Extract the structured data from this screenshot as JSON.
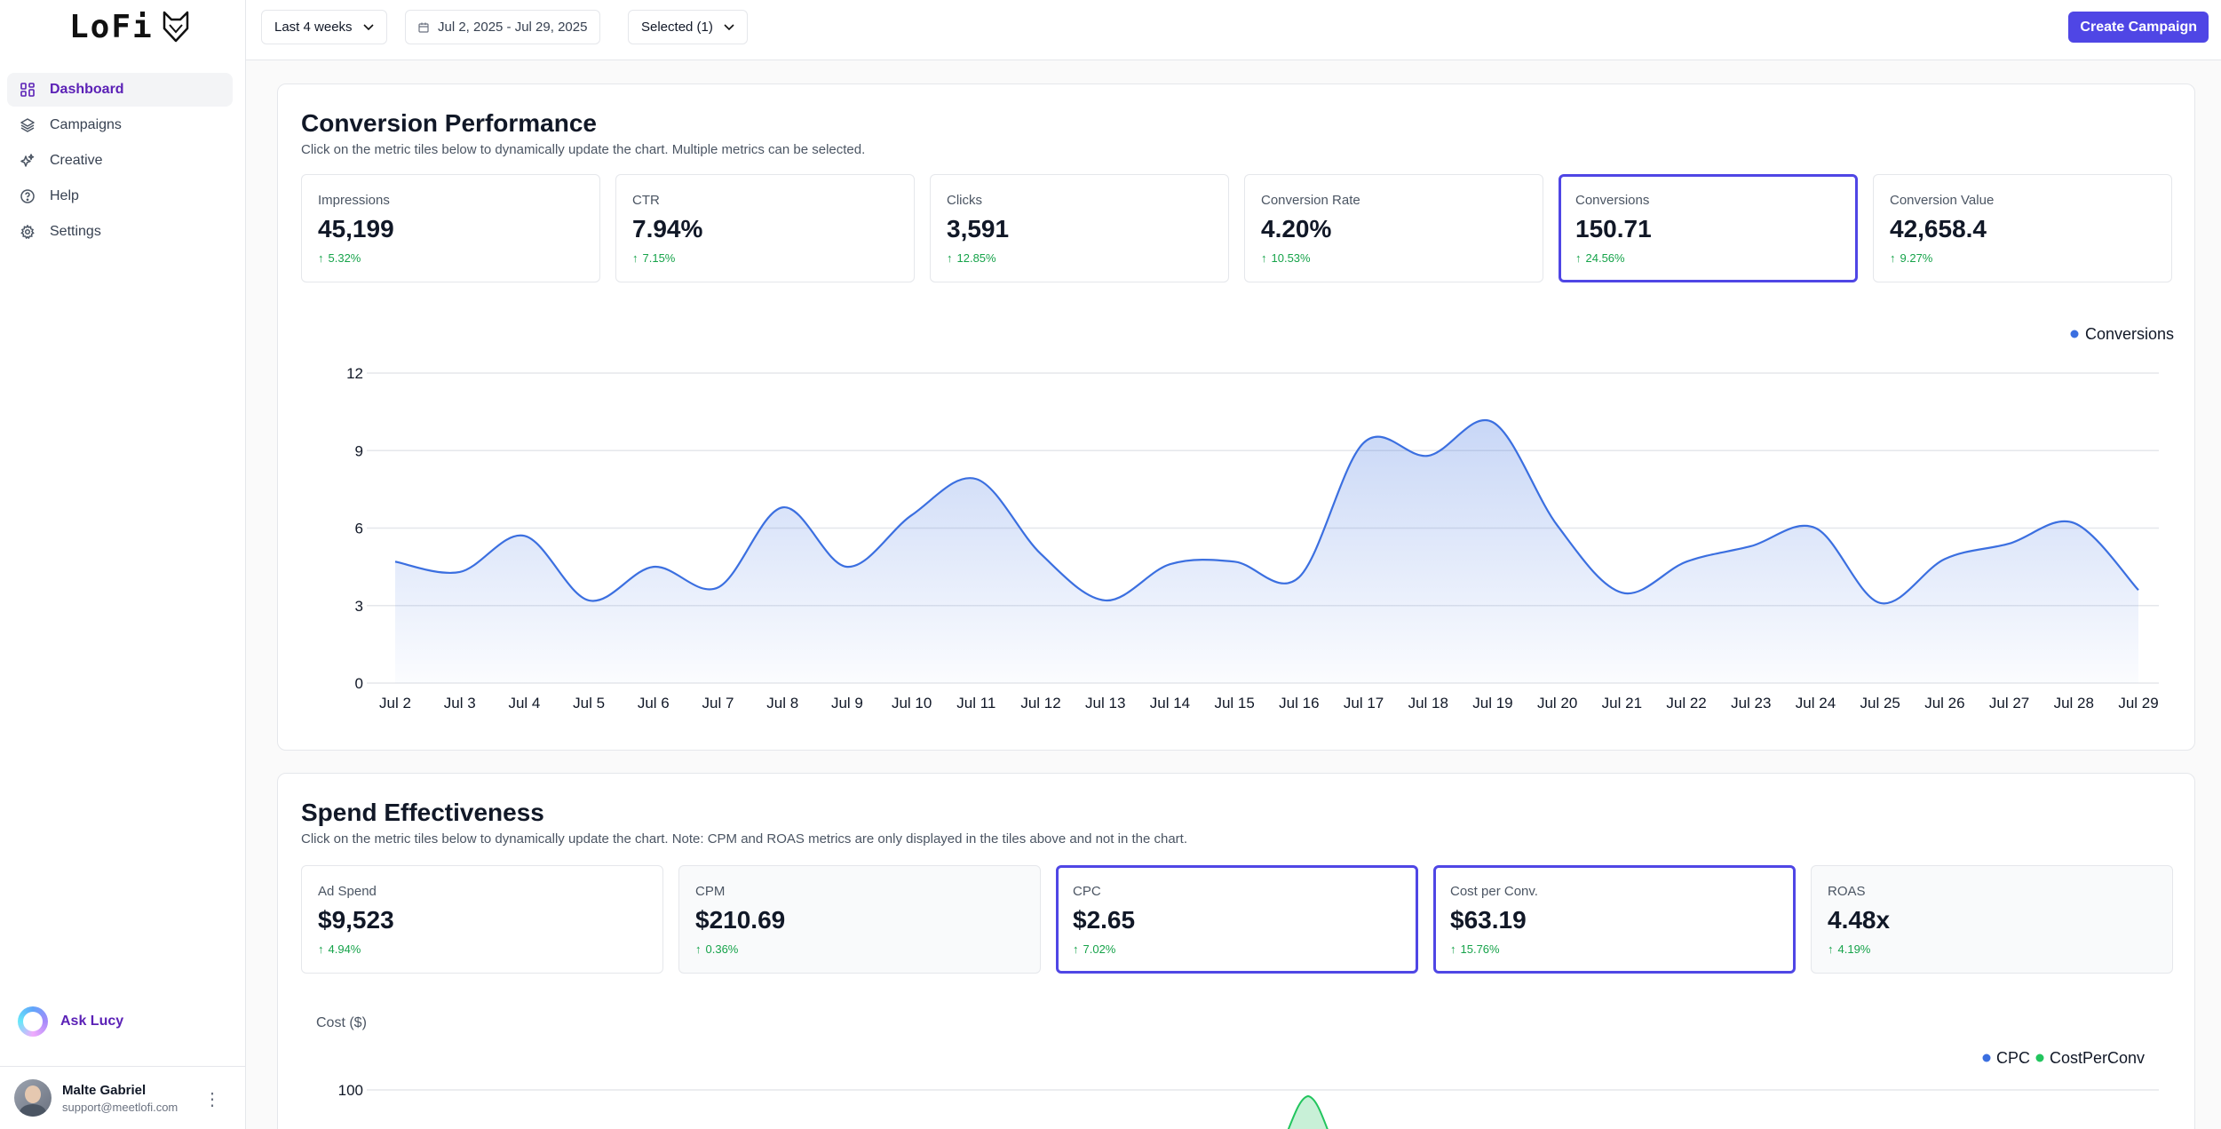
{
  "app": {
    "logo_text": "LoFi"
  },
  "sidebar": {
    "items": [
      {
        "label": "Dashboard",
        "icon": "grid-icon",
        "active": true
      },
      {
        "label": "Campaigns",
        "icon": "layers-icon",
        "active": false
      },
      {
        "label": "Creative",
        "icon": "sparkles-icon",
        "active": false
      },
      {
        "label": "Help",
        "icon": "help-circle-icon",
        "active": false
      },
      {
        "label": "Settings",
        "icon": "gear-icon",
        "active": false
      }
    ],
    "ask_lucy": "Ask Lucy",
    "user": {
      "name": "Malte Gabriel",
      "email": "support@meetlofi.com"
    }
  },
  "topbar": {
    "range_label": "Last 4 weeks",
    "date_range": "Jul 2, 2025 - Jul 29, 2025",
    "selected_label": "Selected (1)",
    "create_label": "Create Campaign"
  },
  "conversion": {
    "title": "Conversion Performance",
    "subtitle": "Click on the metric tiles below to dynamically update the chart. Multiple metrics can be selected.",
    "tiles": [
      {
        "label": "Impressions",
        "value": "45,199",
        "change": "5.32%",
        "selected": false
      },
      {
        "label": "CTR",
        "value": "7.94%",
        "change": "7.15%",
        "selected": false
      },
      {
        "label": "Clicks",
        "value": "3,591",
        "change": "12.85%",
        "selected": false
      },
      {
        "label": "Conversion Rate",
        "value": "4.20%",
        "change": "10.53%",
        "selected": false
      },
      {
        "label": "Conversions",
        "value": "150.71",
        "change": "24.56%",
        "selected": true
      },
      {
        "label": "Conversion Value",
        "value": "42,658.4",
        "change": "9.27%",
        "selected": false
      }
    ]
  },
  "spend": {
    "title": "Spend Effectiveness",
    "subtitle": "Click on the metric tiles below to dynamically update the chart. Note: CPM and ROAS metrics are only displayed in the tiles above and not in the chart.",
    "tiles": [
      {
        "label": "Ad Spend",
        "value": "$9,523",
        "change": "4.94%",
        "selected": false,
        "muted": false
      },
      {
        "label": "CPM",
        "value": "$210.69",
        "change": "0.36%",
        "selected": false,
        "muted": true
      },
      {
        "label": "CPC",
        "value": "$2.65",
        "change": "7.02%",
        "selected": true,
        "muted": false
      },
      {
        "label": "Cost per Conv.",
        "value": "$63.19",
        "change": "15.76%",
        "selected": true,
        "muted": false
      },
      {
        "label": "ROAS",
        "value": "4.48x",
        "change": "4.19%",
        "selected": false,
        "muted": true
      }
    ]
  },
  "colors": {
    "accent": "#4f46e5",
    "line": "#3b6fe0",
    "green": "#22c55e",
    "positive": "#16a34a"
  },
  "chart_data": [
    {
      "type": "area",
      "title": "",
      "categories": [
        "Jul 2",
        "Jul 3",
        "Jul 4",
        "Jul 5",
        "Jul 6",
        "Jul 7",
        "Jul 8",
        "Jul 9",
        "Jul 10",
        "Jul 11",
        "Jul 12",
        "Jul 13",
        "Jul 14",
        "Jul 15",
        "Jul 16",
        "Jul 17",
        "Jul 18",
        "Jul 19",
        "Jul 20",
        "Jul 21",
        "Jul 22",
        "Jul 23",
        "Jul 24",
        "Jul 25",
        "Jul 26",
        "Jul 27",
        "Jul 28",
        "Jul 29"
      ],
      "series": [
        {
          "name": "Conversions",
          "color": "#3b6fe0",
          "values": [
            4.7,
            4.3,
            5.7,
            3.2,
            4.5,
            3.7,
            6.8,
            4.5,
            6.5,
            7.9,
            5.0,
            3.2,
            4.6,
            4.7,
            4.1,
            9.3,
            8.8,
            10.1,
            6.1,
            3.5,
            4.7,
            5.3,
            6.0,
            3.1,
            4.8,
            5.4,
            6.2,
            3.6
          ]
        }
      ],
      "yticks": [
        0,
        3,
        6,
        9,
        12
      ],
      "ylim": [
        0,
        12
      ],
      "grid": true,
      "legend": "top-right"
    },
    {
      "type": "area",
      "title": "",
      "ylabel": "Cost ($)",
      "series": [
        {
          "name": "CPC",
          "color": "#3b6fe0"
        },
        {
          "name": "CostPerConv",
          "color": "#22c55e"
        }
      ],
      "yticks": [
        100
      ],
      "grid": true,
      "legend": "top-right"
    }
  ]
}
